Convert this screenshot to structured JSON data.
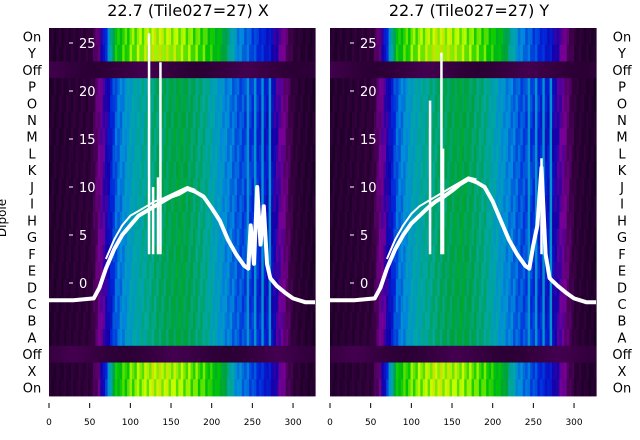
{
  "chart_data": {
    "type": "heatmap",
    "ylabel": "Dipole",
    "row_labels": [
      "On",
      "Y",
      "Off",
      "P",
      "O",
      "N",
      "M",
      "L",
      "K",
      "J",
      "I",
      "H",
      "G",
      "F",
      "E",
      "D",
      "C",
      "B",
      "A",
      "Off",
      "X",
      "On"
    ],
    "row_types": [
      "on",
      "on",
      "off",
      "dip",
      "dip",
      "dip",
      "dip",
      "dip",
      "dip",
      "dip",
      "dip",
      "dip",
      "dip",
      "dip",
      "dip",
      "dip",
      "dip",
      "dip",
      "dip",
      "off",
      "on",
      "on"
    ],
    "xlim": [
      0,
      327
    ],
    "x_ticks": [
      0,
      50,
      100,
      150,
      200,
      250,
      300
    ],
    "inner_ylim": [
      -3,
      27.5
    ],
    "inner_y_ticks": [
      0,
      5,
      10,
      15,
      20,
      25
    ],
    "profile_x": [
      0,
      50,
      60,
      70,
      80,
      100,
      130,
      160,
      190,
      210,
      230,
      245,
      270,
      285,
      300,
      327
    ],
    "dipole_level": [
      0.05,
      0.08,
      0.2,
      0.3,
      0.45,
      0.55,
      0.62,
      0.66,
      0.6,
      0.52,
      0.45,
      0.42,
      0.35,
      0.22,
      0.08,
      0.03
    ],
    "on_level": [
      0.05,
      0.08,
      0.2,
      0.45,
      0.72,
      0.78,
      0.82,
      0.8,
      0.76,
      0.7,
      0.5,
      0.45,
      0.35,
      0.22,
      0.08,
      0.03
    ],
    "panels": [
      {
        "title": "22.7 (Tile027=27) X",
        "series": [
          {
            "name": "spectrum",
            "x": [
              0,
              30,
              55,
              62,
              70,
              80,
              90,
              100,
              110,
              120,
              130,
              140,
              150,
              160,
              170,
              180,
              190,
              200,
              210,
              220,
              230,
              240,
              245,
              248,
              252,
              256,
              260,
              264,
              268,
              272,
              280,
              290,
              300,
              315,
              327
            ],
            "y": [
              -1.8,
              -1.8,
              -1.6,
              -0.5,
              1.5,
              3.5,
              5,
              6,
              7,
              7.5,
              8,
              8.5,
              9,
              9.3,
              9.8,
              9.5,
              9,
              7.8,
              6.5,
              4.5,
              3,
              1.8,
              1.5,
              6,
              2,
              10,
              4,
              8,
              2,
              0.5,
              -0.3,
              -1,
              -1.6,
              -2,
              -2
            ]
          },
          {
            "name": "spectrum-upper",
            "x": [
              70,
              80,
              90,
              100,
              110,
              120,
              130,
              140,
              150,
              160,
              170,
              180
            ],
            "y": [
              2.5,
              4.5,
              6,
              7,
              7.5,
              8,
              8.5,
              8.8,
              9.2,
              9.6,
              10,
              9.7
            ]
          }
        ],
        "spikes": [
          {
            "x": 123,
            "y": 26
          },
          {
            "x": 137,
            "y": 23
          },
          {
            "x": 128,
            "y": 10
          },
          {
            "x": 134,
            "y": 11
          }
        ]
      },
      {
        "title": "22.7 (Tile027=27) Y",
        "series": [
          {
            "name": "spectrum",
            "x": [
              0,
              30,
              55,
              62,
              70,
              80,
              90,
              100,
              110,
              120,
              130,
              140,
              150,
              160,
              170,
              180,
              190,
              200,
              210,
              220,
              230,
              240,
              245,
              250,
              255,
              260,
              265,
              270,
              280,
              290,
              300,
              315,
              327
            ],
            "y": [
              -1.8,
              -1.8,
              -1.6,
              -0.5,
              1.5,
              3.5,
              5,
              6.2,
              7,
              7.8,
              8.5,
              9,
              9.6,
              10.3,
              10.8,
              10.5,
              10,
              8.5,
              6.5,
              4.5,
              3,
              1.8,
              1.5,
              4,
              6,
              12,
              3,
              0.5,
              -0.3,
              -1,
              -1.6,
              -2,
              -2
            ]
          },
          {
            "name": "spectrum-upper",
            "x": [
              70,
              80,
              90,
              100,
              110,
              120,
              130,
              140,
              150,
              160,
              170,
              180
            ],
            "y": [
              2.5,
              4.5,
              6,
              7.2,
              8,
              8.5,
              9,
              9.5,
              10,
              10.5,
              11,
              10.8
            ]
          }
        ],
        "spikes": [
          {
            "x": 123,
            "y": 19
          },
          {
            "x": 137,
            "y": 24
          },
          {
            "x": 139,
            "y": 14
          },
          {
            "x": 260,
            "y": 13
          }
        ]
      }
    ]
  }
}
